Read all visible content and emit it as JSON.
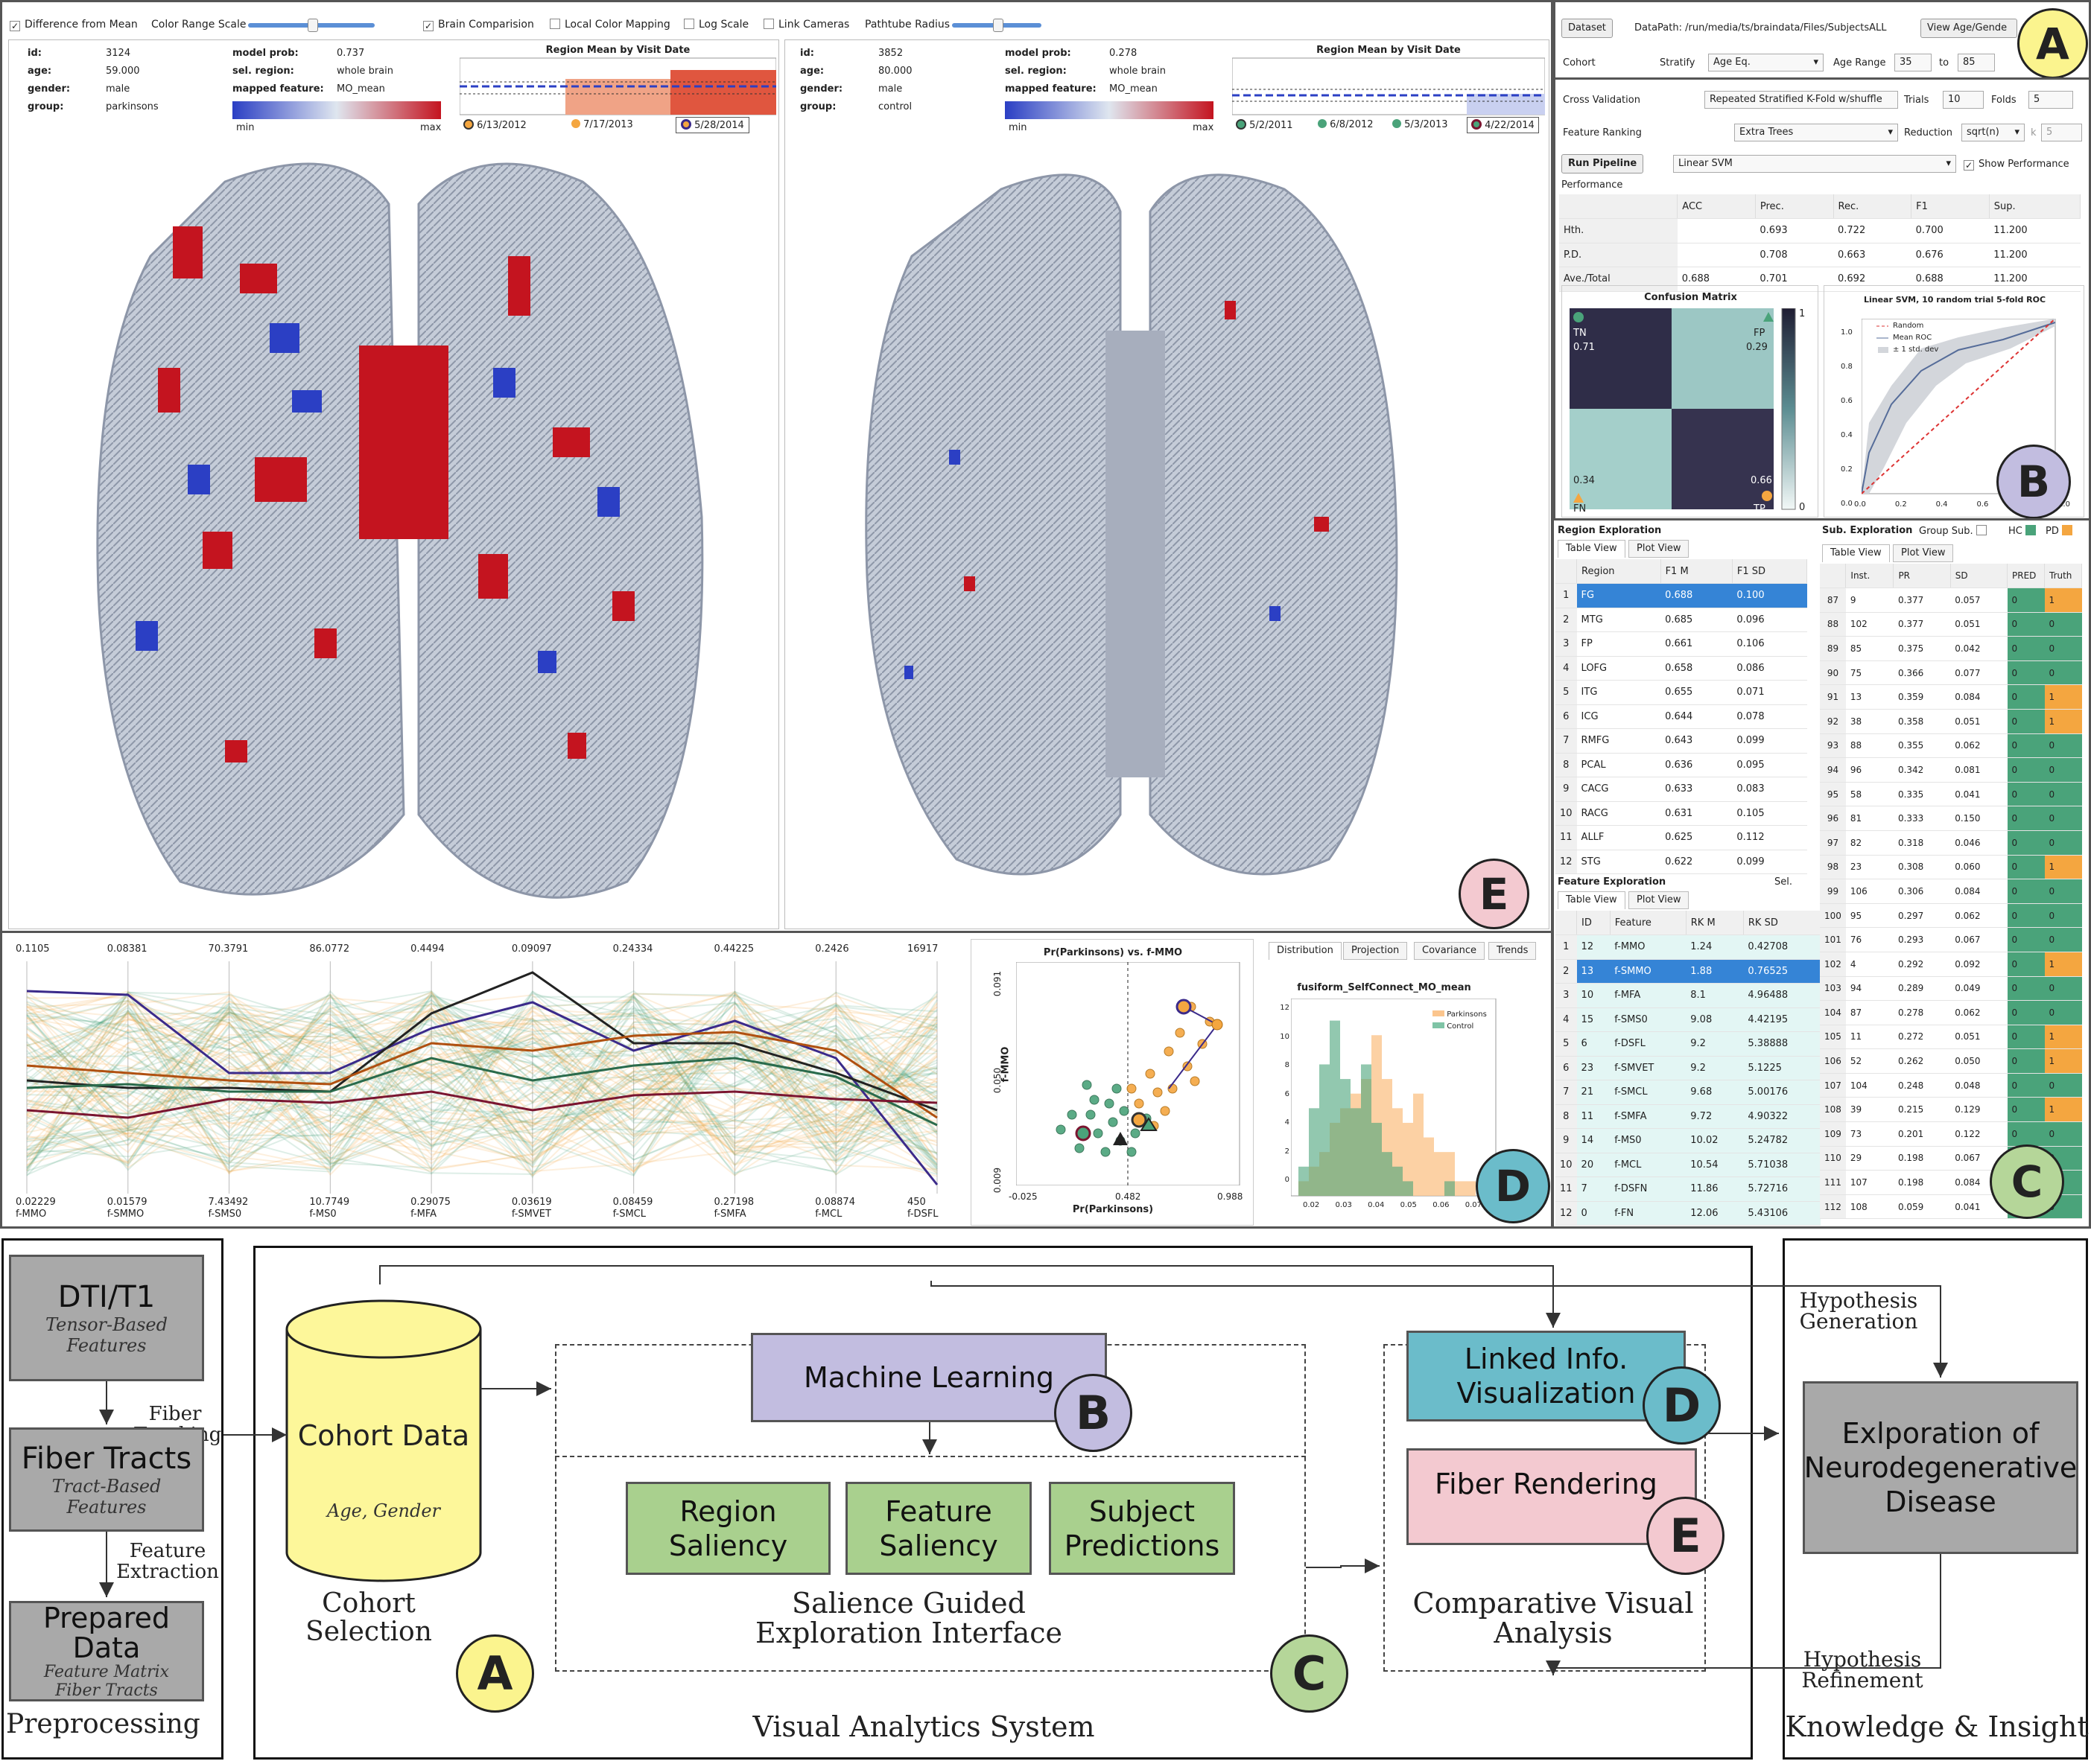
{
  "viewer": {
    "toolbar": {
      "diff": "Difference from Mean",
      "color_range": "Color Range Scale",
      "brain_comp": "Brain Comparision",
      "local_color": "Local Color Mapping",
      "log_scale": "Log Scale",
      "link_cameras": "Link Cameras",
      "pathtube": "Pathtube Radius"
    },
    "left": {
      "id_k": "id:",
      "id": "3124",
      "age_k": "age:",
      "age": "59.000",
      "gender_k": "gender:",
      "gender": "male",
      "group_k": "group:",
      "group": "parkinsons",
      "prob_k": "model prob:",
      "prob": "0.737",
      "region_k": "sel. region:",
      "region": "whole brain",
      "feat_k": "mapped feature:",
      "feat": "MO_mean",
      "min": "min",
      "max": "max",
      "chart_title": "Region Mean by Visit Date",
      "dates": [
        "6/13/2012",
        "7/17/2013",
        "5/28/2014"
      ]
    },
    "right": {
      "id_k": "id:",
      "id": "3852",
      "age_k": "age:",
      "age": "80.000",
      "gender_k": "gender:",
      "gender": "male",
      "group_k": "group:",
      "group": "control",
      "prob_k": "model prob:",
      "prob": "0.278",
      "region_k": "sel. region:",
      "region": "whole brain",
      "feat_k": "mapped feature:",
      "feat": "MO_mean",
      "min": "min",
      "max": "max",
      "chart_title": "Region Mean by Visit Date",
      "dates": [
        "5/2/2011",
        "6/8/2012",
        "5/3/2013",
        "4/22/2014"
      ]
    }
  },
  "panelA": {
    "dataset_btn": "Dataset",
    "datapath": "DataPath: /run/media/ts/braindata/Files/SubjectsALL",
    "view_btn": "View Age/Gende",
    "cohort": "Cohort",
    "stratify": "Stratify",
    "stratify_val": "Age Eq.",
    "age_range": "Age Range",
    "age_min": "35",
    "to": "to",
    "age_max": "85"
  },
  "panelB": {
    "cv": "Cross Validation",
    "cv_val": "Repeated Stratified K-Fold w/shuffle",
    "trials": "Trials",
    "trials_val": "10",
    "folds": "Folds",
    "folds_val": "5",
    "fr": "Feature Ranking",
    "fr_val": "Extra Trees",
    "reduction": "Reduction",
    "red_val": "sqrt(n)",
    "k": "k",
    "k_val": "5",
    "run": "Run Pipeline",
    "model": "Linear SVM",
    "show_perf": "Show Performance",
    "perf": "Performance",
    "perf_table": {
      "headers": [
        "",
        "ACC",
        "Prec.",
        "Rec.",
        "F1",
        "Sup."
      ],
      "rows": [
        [
          "Hth.",
          "",
          "0.693",
          "0.722",
          "0.700",
          "11.200"
        ],
        [
          "P.D.",
          "",
          "0.708",
          "0.663",
          "0.676",
          "11.200"
        ],
        [
          "Ave./Total",
          "0.688",
          "0.701",
          "0.692",
          "0.688",
          "11.200"
        ]
      ]
    },
    "cm_title": "Confusion Matrix",
    "cm": {
      "tn": "TN",
      "tn_v": "0.71",
      "fp": "FP",
      "fp_v": "0.29",
      "fn": "FN",
      "fn_v": "0.34",
      "tp": "TP",
      "tp_v": "0.66",
      "scale_max": "1",
      "scale_min": "0"
    },
    "roc_title": "Linear SVM, 10 random trial 5-fold ROC",
    "roc_legend": [
      "Random",
      "Mean ROC",
      "± 1 std. dev"
    ],
    "roc_ticks_y": [
      "1.0",
      "0.8",
      "0.6",
      "0.4",
      "0.2",
      "0.0"
    ],
    "roc_ticks_x": [
      "0.0",
      "0.2",
      "0.4",
      "0.6",
      "0.8",
      "1.0"
    ]
  },
  "panelC": {
    "region_title": "Region Exploration",
    "table_tab": "Table View",
    "plot_tab": "Plot View",
    "region_headers": [
      "",
      "Region",
      "F1 M",
      "F1 SD"
    ],
    "regions": [
      [
        "1",
        "FG",
        "0.688",
        "0.100"
      ],
      [
        "2",
        "MTG",
        "0.685",
        "0.096"
      ],
      [
        "3",
        "FP",
        "0.661",
        "0.106"
      ],
      [
        "4",
        "LOFG",
        "0.658",
        "0.086"
      ],
      [
        "5",
        "ITG",
        "0.655",
        "0.071"
      ],
      [
        "6",
        "ICG",
        "0.644",
        "0.078"
      ],
      [
        "7",
        "RMFG",
        "0.643",
        "0.099"
      ],
      [
        "8",
        "PCAL",
        "0.636",
        "0.095"
      ],
      [
        "9",
        "CACG",
        "0.633",
        "0.083"
      ],
      [
        "10",
        "RACG",
        "0.631",
        "0.105"
      ],
      [
        "11",
        "ALLF",
        "0.625",
        "0.112"
      ],
      [
        "12",
        "STG",
        "0.622",
        "0.099"
      ]
    ],
    "feature_title": "Feature Exploration",
    "sel": "Sel.",
    "feature_headers": [
      "",
      "ID",
      "Feature",
      "RK M",
      "RK SD"
    ],
    "features": [
      [
        "1",
        "12",
        "f-MMO",
        "1.24",
        "0.42708"
      ],
      [
        "2",
        "13",
        "f-SMMO",
        "1.88",
        "0.76525"
      ],
      [
        "3",
        "10",
        "f-MFA",
        "8.1",
        "4.96488"
      ],
      [
        "4",
        "15",
        "f-SMS0",
        "9.08",
        "4.42195"
      ],
      [
        "5",
        "6",
        "f-DSFL",
        "9.2",
        "5.38888"
      ],
      [
        "6",
        "23",
        "f-SMVET",
        "9.2",
        "5.1225"
      ],
      [
        "7",
        "21",
        "f-SMCL",
        "9.68",
        "5.00176"
      ],
      [
        "8",
        "11",
        "f-SMFA",
        "9.72",
        "4.90322"
      ],
      [
        "9",
        "14",
        "f-MS0",
        "10.02",
        "5.24782"
      ],
      [
        "10",
        "20",
        "f-MCL",
        "10.54",
        "5.71038"
      ],
      [
        "11",
        "7",
        "f-DSFN",
        "11.86",
        "5.72716"
      ],
      [
        "12",
        "0",
        "f-FN",
        "12.06",
        "5.43106"
      ]
    ],
    "sub_title": "Sub. Exploration",
    "group_sub": "Group Sub.",
    "hc": "HC",
    "pd": "PD",
    "sub_headers": [
      "",
      "Inst.",
      "PR",
      "SD",
      "PRED",
      "Truth"
    ],
    "subjects": [
      [
        "87",
        "9",
        "0.377",
        "0.057",
        "0",
        "1"
      ],
      [
        "88",
        "102",
        "0.377",
        "0.051",
        "0",
        "0"
      ],
      [
        "89",
        "85",
        "0.375",
        "0.042",
        "0",
        "0"
      ],
      [
        "90",
        "75",
        "0.366",
        "0.077",
        "0",
        "0"
      ],
      [
        "91",
        "13",
        "0.359",
        "0.084",
        "0",
        "1"
      ],
      [
        "92",
        "38",
        "0.358",
        "0.051",
        "0",
        "1"
      ],
      [
        "93",
        "88",
        "0.355",
        "0.062",
        "0",
        "0"
      ],
      [
        "94",
        "96",
        "0.342",
        "0.081",
        "0",
        "0"
      ],
      [
        "95",
        "58",
        "0.335",
        "0.041",
        "0",
        "0"
      ],
      [
        "96",
        "81",
        "0.333",
        "0.150",
        "0",
        "0"
      ],
      [
        "97",
        "82",
        "0.318",
        "0.046",
        "0",
        "0"
      ],
      [
        "98",
        "23",
        "0.308",
        "0.060",
        "0",
        "1"
      ],
      [
        "99",
        "106",
        "0.306",
        "0.084",
        "0",
        "0"
      ],
      [
        "100",
        "95",
        "0.297",
        "0.062",
        "0",
        "0"
      ],
      [
        "101",
        "76",
        "0.293",
        "0.067",
        "0",
        "0"
      ],
      [
        "102",
        "4",
        "0.292",
        "0.092",
        "0",
        "1"
      ],
      [
        "103",
        "94",
        "0.289",
        "0.049",
        "0",
        "0"
      ],
      [
        "104",
        "87",
        "0.278",
        "0.062",
        "0",
        "0"
      ],
      [
        "105",
        "11",
        "0.272",
        "0.051",
        "0",
        "1"
      ],
      [
        "106",
        "52",
        "0.262",
        "0.050",
        "0",
        "1"
      ],
      [
        "107",
        "104",
        "0.248",
        "0.048",
        "0",
        "0"
      ],
      [
        "108",
        "39",
        "0.215",
        "0.129",
        "0",
        "1"
      ],
      [
        "109",
        "73",
        "0.201",
        "0.122",
        "0",
        "0"
      ],
      [
        "110",
        "29",
        "0.198",
        "0.067",
        "0",
        "0"
      ],
      [
        "111",
        "107",
        "0.198",
        "0.084",
        "0",
        "0"
      ],
      [
        "112",
        "108",
        "0.059",
        "0.041",
        "0",
        "0"
      ]
    ]
  },
  "panelD": {
    "pc_top": [
      "0.1105",
      "0.08381",
      "70.3791",
      "86.0772",
      "0.4494",
      "0.09097",
      "0.24334",
      "0.44225",
      "0.2426",
      "16917"
    ],
    "pc_bot": [
      "0.02229",
      "0.01579",
      "7.43492",
      "10.7749",
      "0.29075",
      "0.03619",
      "0.08459",
      "0.27198",
      "0.08874",
      "450"
    ],
    "pc_axes": [
      "f-MMO",
      "f-SMMO",
      "f-SMS0",
      "f-MS0",
      "f-MFA",
      "f-SMVET",
      "f-SMCL",
      "f-SMFA",
      "f-MCL",
      "f-DSFL"
    ],
    "scatter_title": "Pr(Parkinsons) vs. f-MMO",
    "scatter_x": "Pr(Parkinsons)",
    "scatter_y": "f-MMO",
    "sx": [
      "-0.025",
      "0.482",
      "0.988"
    ],
    "sy": [
      "0.091",
      "0.050",
      "0.009"
    ],
    "tabs": [
      "Distribution",
      "Projection",
      "Covariance",
      "Trends"
    ],
    "hist_title": "fusiform_SelfConnect_MO_mean",
    "hist_legend": [
      "Parkinsons",
      "Control"
    ],
    "hist_y": [
      "12",
      "10",
      "8",
      "6",
      "4",
      "2",
      "0"
    ],
    "hist_x": [
      "0.02",
      "0.03",
      "0.04",
      "0.05",
      "0.06",
      "0.07"
    ]
  },
  "badges": {
    "A": "A",
    "B": "B",
    "C": "C",
    "D": "D",
    "E": "E"
  },
  "diagram": {
    "dti": "DTI/T1",
    "dti_sub": "Tensor-Based Features",
    "fiber_tracking": "Fiber Tracking",
    "fiber_tracts": "Fiber Tracts",
    "ft_sub": "Tract-Based Features",
    "feature_extraction": "Feature Extraction",
    "prepared": "Prepared Data",
    "prep_sub1": "Feature Matrix",
    "prep_sub2": "Fiber Tracts",
    "preprocessing": "Preprocessing",
    "cohort": "Cohort Data",
    "cohort_sub": "Age, Gender",
    "cohort_sel": "Cohort Selection",
    "ml": "Machine Learning",
    "region_sal": "Region Saliency",
    "feature_sal": "Feature Saliency",
    "subject_pred": "Subject Predictions",
    "sgei": "Salience Guided Exploration Interface",
    "linked": "Linked Info. Visualization",
    "fiber_render": "Fiber Rendering",
    "cva": "Comparative Visual Analysis",
    "vas": "Visual Analytics System",
    "hyp_gen": "Hypothesis Generation",
    "hyp_ref": "Hypothesis Refinement",
    "explore": "Exlporation of Neurodegenerative Disease",
    "ki": "Knowledge & Insight"
  }
}
